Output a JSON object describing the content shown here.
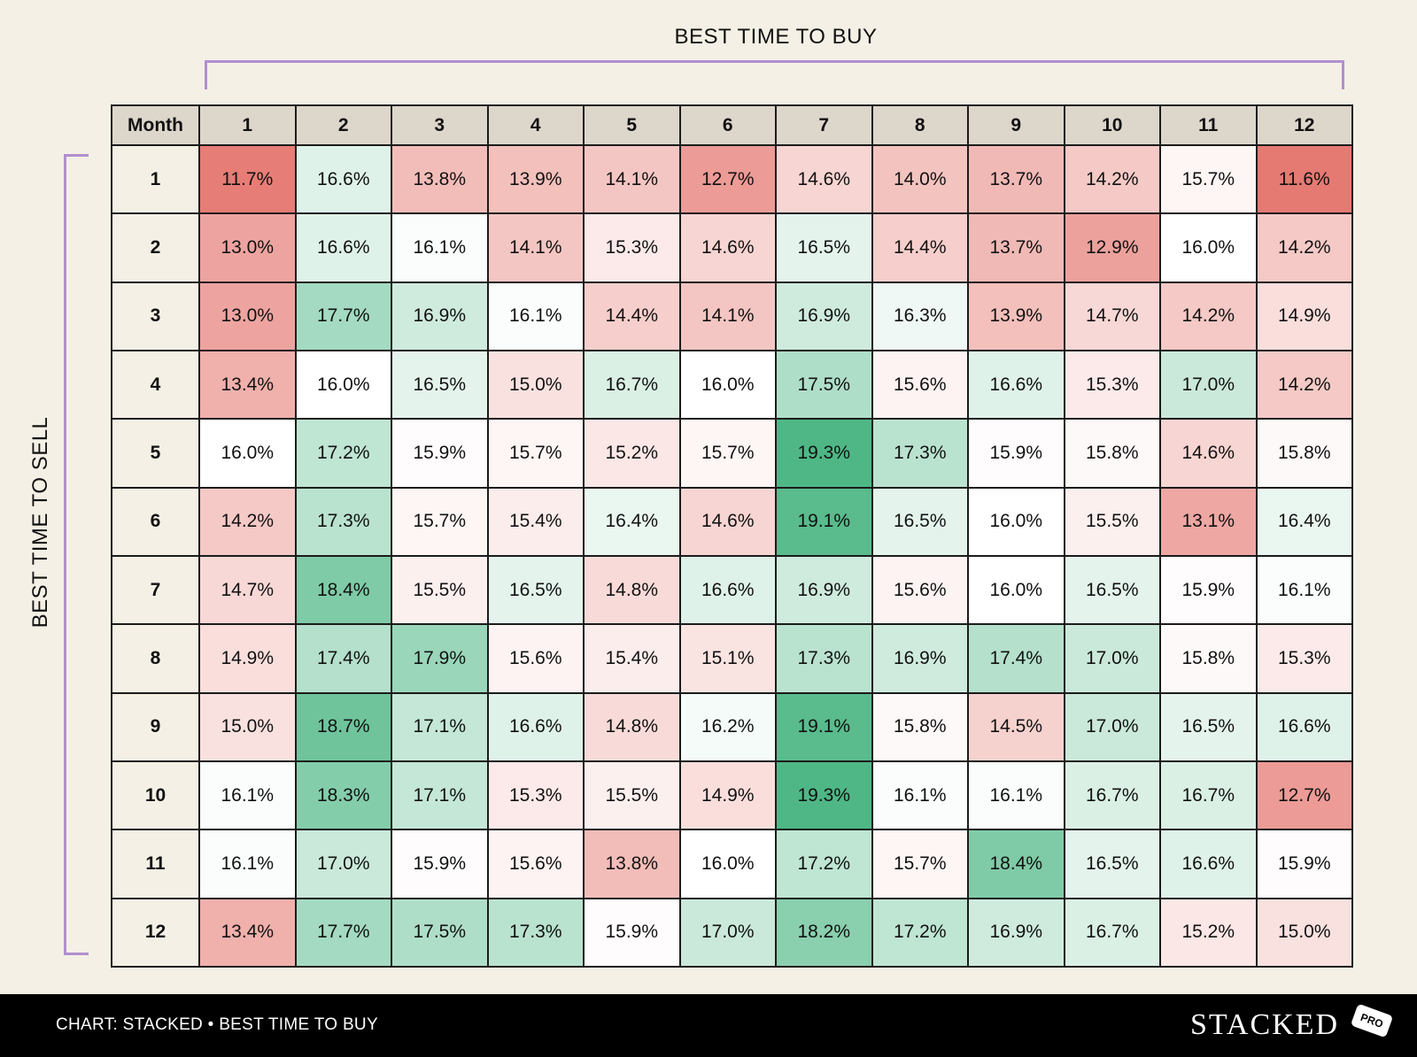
{
  "axis_labels": {
    "top": "BEST TIME TO BUY",
    "side": "BEST TIME TO SELL"
  },
  "colors": {
    "background": "#f4f0e5",
    "header": "#ddd6cb",
    "bracket": "#b18fcf",
    "low": "#e57a73",
    "mid": "#ffffff",
    "high": "#4fb786"
  },
  "footer": {
    "credit": "CHART: STACKED • BEST TIME TO BUY",
    "brand": "STACKED",
    "badge": "PRO"
  },
  "chart_data": {
    "type": "heatmap",
    "corner_label": "Month",
    "columns": [
      "1",
      "2",
      "3",
      "4",
      "5",
      "6",
      "7",
      "8",
      "9",
      "10",
      "11",
      "12"
    ],
    "rows": [
      "1",
      "2",
      "3",
      "4",
      "5",
      "6",
      "7",
      "8",
      "9",
      "10",
      "11",
      "12"
    ],
    "unit": "%",
    "color_scale": {
      "min": 11.6,
      "mid": 16.0,
      "max": 19.3
    },
    "values": [
      [
        11.7,
        16.6,
        13.8,
        13.9,
        14.1,
        12.7,
        14.6,
        14.0,
        13.7,
        14.2,
        15.7,
        11.6
      ],
      [
        13.0,
        16.6,
        16.1,
        14.1,
        15.3,
        14.6,
        16.5,
        14.4,
        13.7,
        12.9,
        16.0,
        14.2
      ],
      [
        13.0,
        17.7,
        16.9,
        16.1,
        14.4,
        14.1,
        16.9,
        16.3,
        13.9,
        14.7,
        14.2,
        14.9
      ],
      [
        13.4,
        16.0,
        16.5,
        15.0,
        16.7,
        16.0,
        17.5,
        15.6,
        16.6,
        15.3,
        17.0,
        14.2
      ],
      [
        16.0,
        17.2,
        15.9,
        15.7,
        15.2,
        15.7,
        19.3,
        17.3,
        15.9,
        15.8,
        14.6,
        15.8
      ],
      [
        14.2,
        17.3,
        15.7,
        15.4,
        16.4,
        14.6,
        19.1,
        16.5,
        16.0,
        15.5,
        13.1,
        16.4
      ],
      [
        14.7,
        18.4,
        15.5,
        16.5,
        14.8,
        16.6,
        16.9,
        15.6,
        16.0,
        16.5,
        15.9,
        16.1
      ],
      [
        14.9,
        17.4,
        17.9,
        15.6,
        15.4,
        15.1,
        17.3,
        16.9,
        17.4,
        17.0,
        15.8,
        15.3
      ],
      [
        15.0,
        18.7,
        17.1,
        16.6,
        14.8,
        16.2,
        19.1,
        15.8,
        14.5,
        17.0,
        16.5,
        16.6
      ],
      [
        16.1,
        18.3,
        17.1,
        15.3,
        15.5,
        14.9,
        19.3,
        16.1,
        16.1,
        16.7,
        16.7,
        12.7
      ],
      [
        16.1,
        17.0,
        15.9,
        15.6,
        13.8,
        16.0,
        17.2,
        15.7,
        18.4,
        16.5,
        16.6,
        15.9
      ],
      [
        13.4,
        17.7,
        17.5,
        17.3,
        15.9,
        17.0,
        18.2,
        17.2,
        16.9,
        16.7,
        15.2,
        15.0
      ]
    ]
  }
}
